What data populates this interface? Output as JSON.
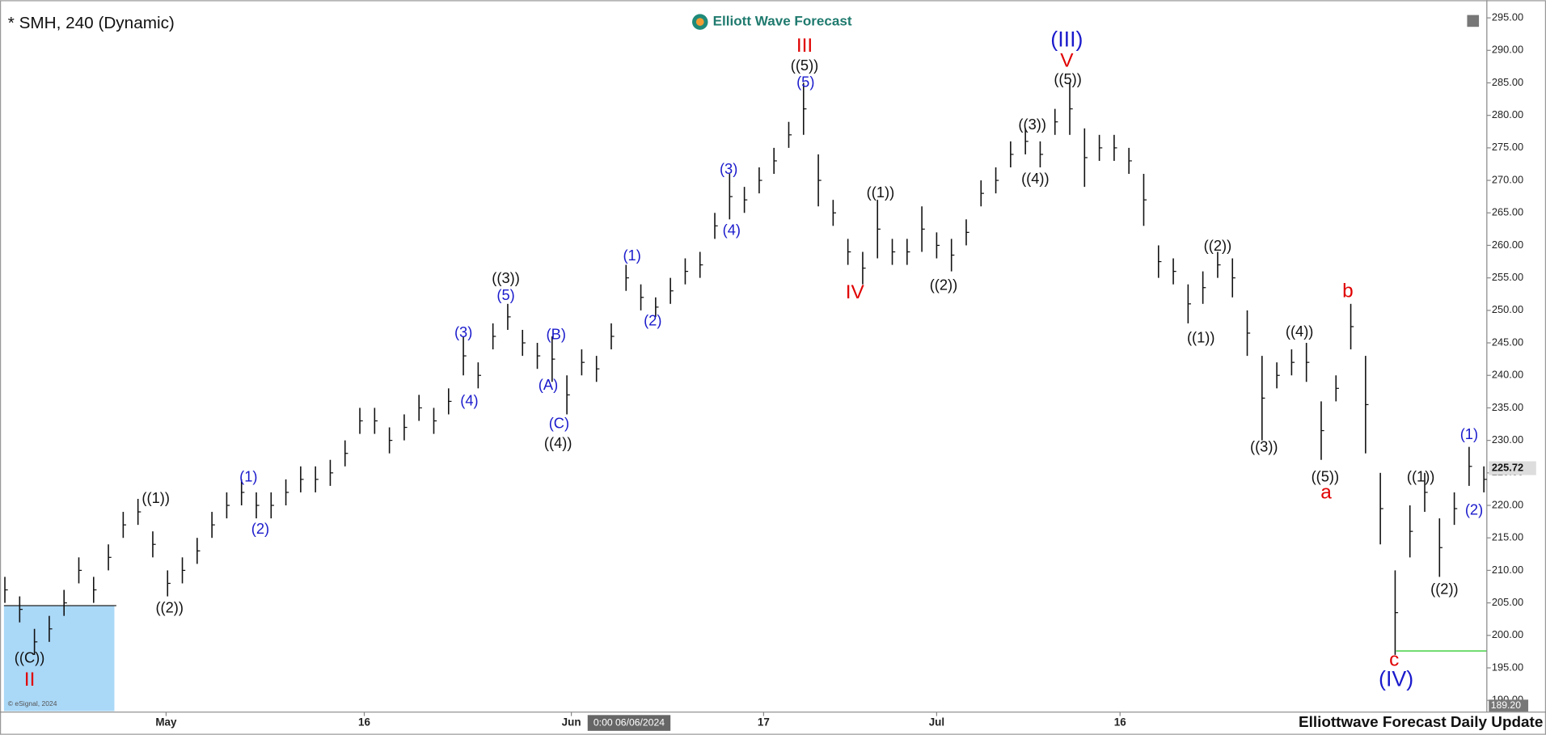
{
  "chart_data": {
    "type": "range-bar",
    "title": "* SMH, 240 (Dynamic)",
    "logo": "Elliott Wave Forecast",
    "footer": "Elliottwave Forecast Daily Update",
    "copyright": "© eSignal, 2024",
    "cursor_label": "0:00 06/06/2024",
    "color": "#111111",
    "x": [
      0,
      1,
      2,
      3,
      4,
      5,
      6,
      7,
      8,
      9,
      10,
      11,
      12,
      13,
      14,
      15,
      16,
      17,
      18,
      19,
      20,
      21,
      22,
      23,
      24,
      25,
      26,
      27,
      28,
      29,
      30,
      31,
      32,
      33,
      34,
      35,
      36,
      37,
      38,
      39,
      40,
      41,
      42,
      43,
      44,
      45,
      46,
      47,
      48,
      49,
      50,
      51,
      52,
      53,
      54,
      55,
      56,
      57,
      58,
      59,
      60,
      61,
      62,
      63,
      64,
      65,
      66,
      67,
      68,
      69,
      70,
      71,
      72,
      73,
      74,
      75,
      76,
      77,
      78,
      79,
      80,
      81,
      82,
      83,
      84,
      85,
      86,
      87,
      88,
      89,
      90,
      91,
      92,
      93,
      94,
      95,
      96,
      97,
      98,
      99,
      100
    ],
    "high": [
      209,
      206,
      201,
      203,
      207,
      212,
      209,
      214,
      219,
      221,
      216,
      210,
      212,
      215,
      219,
      222,
      224,
      222,
      222,
      224,
      226,
      226,
      227,
      230,
      235,
      235,
      232,
      234,
      237,
      235,
      238,
      246,
      242,
      248,
      251,
      247,
      245,
      246,
      240,
      244,
      243,
      248,
      257,
      254,
      252,
      255,
      258,
      259,
      265,
      271,
      269,
      272,
      275,
      279,
      285,
      274,
      267,
      261,
      259,
      267,
      261,
      261,
      266,
      262,
      261,
      264,
      270,
      272,
      276,
      278,
      276,
      281,
      285,
      278,
      277,
      277,
      275,
      271,
      260,
      258,
      254,
      256,
      259,
      258,
      250,
      243,
      242,
      244,
      245,
      236,
      240,
      251,
      243,
      225,
      210,
      220,
      225,
      218,
      222,
      229,
      226
    ],
    "low": [
      205,
      202,
      197,
      199,
      203,
      208,
      205,
      210,
      215,
      217,
      212,
      206,
      208,
      211,
      215,
      218,
      220,
      218,
      218,
      220,
      222,
      222,
      223,
      226,
      231,
      231,
      228,
      230,
      233,
      231,
      234,
      240,
      238,
      244,
      247,
      243,
      241,
      239,
      234,
      240,
      239,
      244,
      253,
      250,
      249,
      251,
      254,
      255,
      261,
      264,
      265,
      268,
      271,
      275,
      277,
      266,
      263,
      257,
      254,
      258,
      257,
      257,
      259,
      258,
      256,
      260,
      266,
      268,
      272,
      274,
      272,
      277,
      277,
      269,
      273,
      273,
      271,
      263,
      255,
      254,
      248,
      251,
      255,
      252,
      243,
      230,
      238,
      240,
      239,
      227,
      236,
      244,
      228,
      214,
      197,
      212,
      219,
      209,
      217,
      223,
      222
    ],
    "xlim": [
      -0.33,
      100.2
    ],
    "ylim": [
      188.5,
      296.5
    ],
    "xticks": [
      {
        "value": 10.9,
        "label": "May"
      },
      {
        "value": 24.3,
        "label": "16"
      },
      {
        "value": 38.3,
        "label": "Jun"
      },
      {
        "value": 51.3,
        "label": "17"
      },
      {
        "value": 63,
        "label": "Jul"
      },
      {
        "value": 75.4,
        "label": "16"
      }
    ],
    "yticks": [
      {
        "value": 190,
        "label": "190.00"
      },
      {
        "value": 195,
        "label": "195.00"
      },
      {
        "value": 200,
        "label": "200.00"
      },
      {
        "value": 205,
        "label": "205.00"
      },
      {
        "value": 210,
        "label": "210.00"
      },
      {
        "value": 215,
        "label": "215.00"
      },
      {
        "value": 220,
        "label": "220.00"
      },
      {
        "value": 225,
        "label": "225.00"
      },
      {
        "value": 230,
        "label": "230.00"
      },
      {
        "value": 235,
        "label": "235.00"
      },
      {
        "value": 240,
        "label": "240.00"
      },
      {
        "value": 245,
        "label": "245.00"
      },
      {
        "value": 250,
        "label": "250.00"
      },
      {
        "value": 255,
        "label": "255.00"
      },
      {
        "value": 260,
        "label": "260.00"
      },
      {
        "value": 265,
        "label": "265.00"
      },
      {
        "value": 270,
        "label": "270.00"
      },
      {
        "value": 275,
        "label": "275.00"
      },
      {
        "value": 280,
        "label": "280.00"
      },
      {
        "value": 285,
        "label": "285.00"
      },
      {
        "value": 290,
        "label": "290.00"
      },
      {
        "value": 295,
        "label": "295.00"
      }
    ],
    "last_price": 225.72,
    "low_marker": {
      "value": 189.2,
      "label": "189.20"
    },
    "annotations": [
      {
        "text": "((C))",
        "color": "#111111"
      },
      {
        "text": "II",
        "color": "#e00000"
      },
      {
        "text": "((1))",
        "color": "#111111"
      },
      {
        "text": "((2))",
        "color": "#111111"
      },
      {
        "text": "(1)",
        "color": "#1a1acc"
      },
      {
        "text": "(2)",
        "color": "#1a1acc"
      },
      {
        "text": "(3)",
        "color": "#1a1acc"
      },
      {
        "text": "(4)",
        "color": "#1a1acc"
      },
      {
        "text": "((3))",
        "color": "#111111"
      },
      {
        "text": "(5)",
        "color": "#1a1acc"
      },
      {
        "text": "(B)",
        "color": "#1a1acc"
      },
      {
        "text": "(A)",
        "color": "#1a1acc"
      },
      {
        "text": "(C)",
        "color": "#1a1acc"
      },
      {
        "text": "((4))",
        "color": "#111111"
      },
      {
        "text": "(1)",
        "color": "#1a1acc"
      },
      {
        "text": "(2)",
        "color": "#1a1acc"
      },
      {
        "text": "(3)",
        "color": "#1a1acc"
      },
      {
        "text": "(4)",
        "color": "#1a1acc"
      },
      {
        "text": "III",
        "color": "#e00000"
      },
      {
        "text": "((5))",
        "color": "#111111"
      },
      {
        "text": "(5)",
        "color": "#1a1acc"
      },
      {
        "text": "IV",
        "color": "#e00000"
      },
      {
        "text": "((1))",
        "color": "#111111"
      },
      {
        "text": "((2))",
        "color": "#111111"
      },
      {
        "text": "((3))",
        "color": "#111111"
      },
      {
        "text": "((4))",
        "color": "#111111"
      },
      {
        "text": "(III)",
        "color": "#1a1acc"
      },
      {
        "text": "V",
        "color": "#e00000"
      },
      {
        "text": "((5))",
        "color": "#111111"
      },
      {
        "text": "((2))",
        "color": "#111111"
      },
      {
        "text": "((1))",
        "color": "#111111"
      },
      {
        "text": "((4))",
        "color": "#111111"
      },
      {
        "text": "((3))",
        "color": "#111111"
      },
      {
        "text": "b",
        "color": "#e00000"
      },
      {
        "text": "((5))",
        "color": "#111111"
      },
      {
        "text": "a",
        "color": "#e00000"
      },
      {
        "text": "((1))",
        "color": "#111111"
      },
      {
        "text": "(1)",
        "color": "#1a1acc"
      },
      {
        "text": "(2)",
        "color": "#1a1acc"
      },
      {
        "text": "((2))",
        "color": "#111111"
      },
      {
        "text": "c",
        "color": "#e00000"
      },
      {
        "text": "(IV)",
        "color": "#1a1acc"
      }
    ]
  }
}
